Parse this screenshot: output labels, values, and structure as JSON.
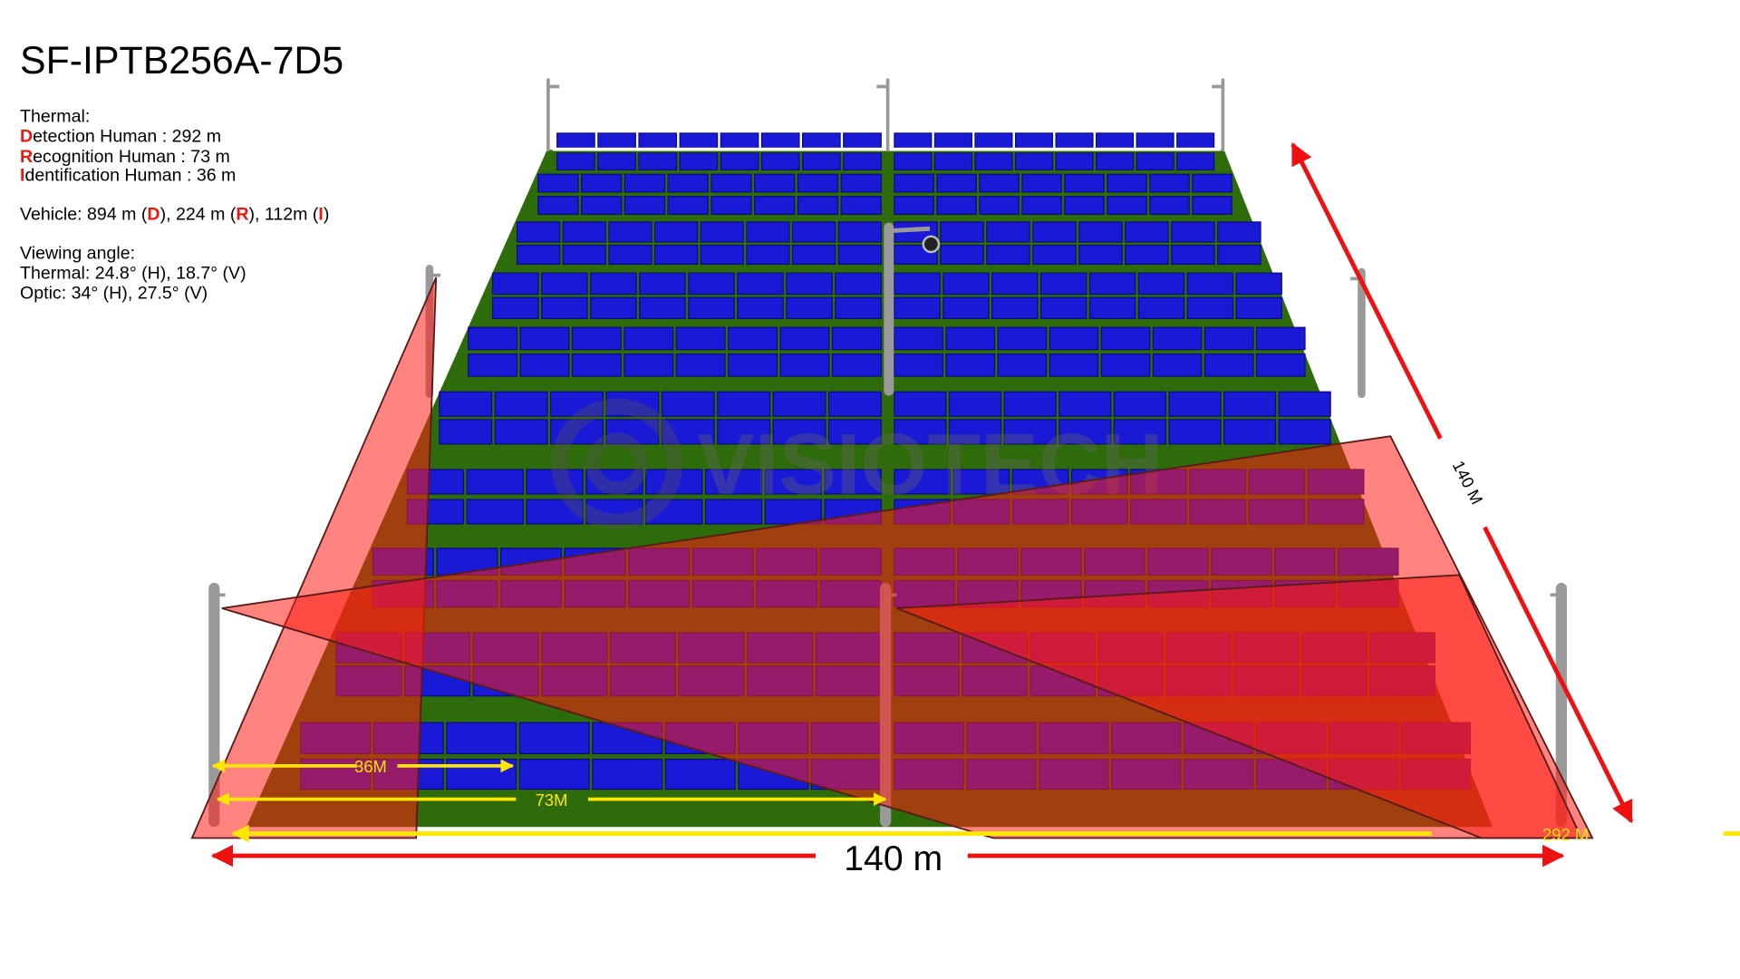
{
  "title": "SF-IPTB256A-7D5",
  "specs": {
    "thermal_heading": "Thermal:",
    "detection": {
      "initial": "D",
      "rest": "etection Human : 292 m"
    },
    "recognition": {
      "initial": "R",
      "rest": "ecognition Human : 73 m"
    },
    "identification": {
      "initial": "I",
      "rest": "dentification Human : 36 m"
    },
    "vehicle": [
      "Vehicle: 894 m (",
      "D",
      "), 224 m (",
      "R",
      "), 112m (",
      "I",
      ")"
    ],
    "viewing_heading": "Viewing angle:",
    "thermal_angle": "Thermal: 24.8° (H), 18.7° (V)",
    "optic_angle": "Optic: 34° (H), 27.5° (V)"
  },
  "labels": {
    "d36": "36M",
    "d73": "73M",
    "d292": "292 M",
    "width": "140 m",
    "depth": "140 M"
  },
  "watermark": "VISIOTECH"
}
